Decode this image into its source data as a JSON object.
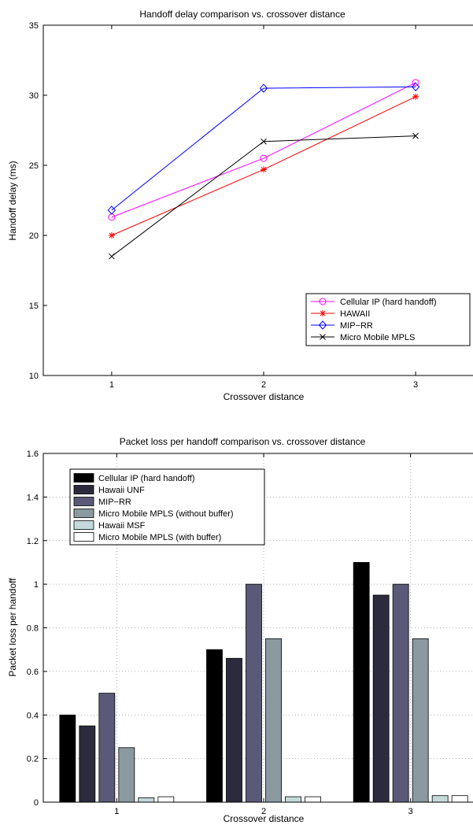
{
  "chart_data": [
    {
      "type": "line",
      "title": "Handoff delay comparison vs. crossover distance",
      "xlabel": "Crossover distance",
      "ylabel": "Handoff delay (ms)",
      "x": [
        1,
        2,
        3
      ],
      "xticks": [
        "1",
        "2",
        "3"
      ],
      "yticks": [
        "10",
        "15",
        "20",
        "25",
        "30",
        "35"
      ],
      "xlim": [
        0.55,
        3.45
      ],
      "ylim": [
        10,
        35
      ],
      "grid": false,
      "legend_position": "lower-right",
      "series": [
        {
          "name": "Cellular IP (hard handoff)",
          "values": [
            21.3,
            25.5,
            30.9
          ],
          "color": "#ff00ff",
          "marker": "circle"
        },
        {
          "name": "HAWAII",
          "values": [
            20.0,
            24.7,
            29.9
          ],
          "color": "#ff0000",
          "marker": "asterisk"
        },
        {
          "name": "MIP−RR",
          "values": [
            21.8,
            30.5,
            30.6
          ],
          "color": "#0000ff",
          "marker": "diamond"
        },
        {
          "name": "Micro Mobile MPLS",
          "values": [
            18.5,
            26.7,
            27.1
          ],
          "color": "#000000",
          "marker": "x"
        }
      ]
    },
    {
      "type": "bar",
      "title": "Packet loss per handoff comparison vs. crossover distance",
      "xlabel": "Crossover distance",
      "ylabel": "Packet loss per handoff",
      "categories": [
        "1",
        "2",
        "3"
      ],
      "yticks": [
        "0",
        "0.2",
        "0.4",
        "0.6",
        "0.8",
        "1",
        "1.2",
        "1.4",
        "1.6"
      ],
      "ylim": [
        0,
        1.6
      ],
      "grid": true,
      "legend_position": "top-left",
      "series": [
        {
          "name": "Cellular IP (hard handoff)",
          "values": [
            0.4,
            0.7,
            1.1
          ],
          "color": "#000000"
        },
        {
          "name": "Hawaii UNF",
          "values": [
            0.35,
            0.66,
            0.95
          ],
          "color": "#2b2b3d"
        },
        {
          "name": "MIP−RR",
          "values": [
            0.5,
            1.0,
            1.0
          ],
          "color": "#5a5a78"
        },
        {
          "name": "Micro Mobile MPLS (without buffer)",
          "values": [
            0.25,
            0.75,
            0.75
          ],
          "color": "#8a9aa0"
        },
        {
          "name": "Hawaii MSF",
          "values": [
            0.02,
            0.025,
            0.03
          ],
          "color": "#c4dada"
        },
        {
          "name": "Micro Mobile MPLS (with buffer)",
          "values": [
            0.025,
            0.025,
            0.03
          ],
          "color": "#ffffff"
        }
      ]
    }
  ]
}
